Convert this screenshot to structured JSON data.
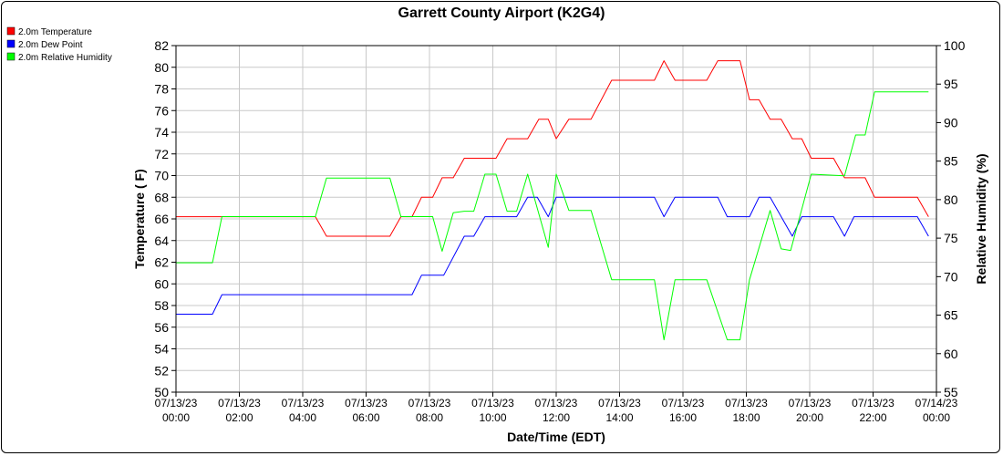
{
  "chart_data": {
    "type": "line",
    "title": "Garrett County Airport (K2G4)",
    "xlabel": "Date/Time (EDT)",
    "ylabel": "Temperature ( F)",
    "y2label": "Relative Humidity (%)",
    "xlim": [
      0,
      24
    ],
    "ylim": [
      50,
      82
    ],
    "y2lim": [
      55,
      100
    ],
    "yticks": [
      50,
      52,
      54,
      56,
      58,
      60,
      62,
      64,
      66,
      68,
      70,
      72,
      74,
      76,
      78,
      80,
      82
    ],
    "y2ticks": [
      55,
      60,
      65,
      70,
      75,
      80,
      85,
      90,
      95,
      100
    ],
    "xticks": [
      {
        "x": 0,
        "date": "07/13/23",
        "time": "00:00"
      },
      {
        "x": 2,
        "date": "07/13/23",
        "time": "02:00"
      },
      {
        "x": 4,
        "date": "07/13/23",
        "time": "04:00"
      },
      {
        "x": 6,
        "date": "07/13/23",
        "time": "06:00"
      },
      {
        "x": 8,
        "date": "07/13/23",
        "time": "08:00"
      },
      {
        "x": 10,
        "date": "07/13/23",
        "time": "10:00"
      },
      {
        "x": 12,
        "date": "07/13/23",
        "time": "12:00"
      },
      {
        "x": 14,
        "date": "07/13/23",
        "time": "14:00"
      },
      {
        "x": 16,
        "date": "07/13/23",
        "time": "16:00"
      },
      {
        "x": 18,
        "date": "07/13/23",
        "time": "18:00"
      },
      {
        "x": 20,
        "date": "07/13/23",
        "time": "20:00"
      },
      {
        "x": 22,
        "date": "07/13/23",
        "time": "22:00"
      },
      {
        "x": 24,
        "date": "07/14/23",
        "time": "00:00"
      }
    ],
    "grid": true,
    "legend_position": "top-left",
    "series": [
      {
        "name": "2.0m Temperature",
        "color": "#ff0000",
        "axis": "left",
        "points": [
          [
            0,
            66.2
          ],
          [
            1.15,
            66.2
          ],
          [
            1.45,
            66.2
          ],
          [
            4.4,
            66.2
          ],
          [
            4.75,
            64.4
          ],
          [
            6.75,
            64.4
          ],
          [
            7.1,
            66.2
          ],
          [
            7.45,
            66.2
          ],
          [
            7.75,
            68.0
          ],
          [
            8.1,
            68.0
          ],
          [
            8.4,
            69.8
          ],
          [
            8.75,
            69.8
          ],
          [
            9.1,
            71.6
          ],
          [
            10.1,
            71.6
          ],
          [
            10.45,
            73.4
          ],
          [
            11.1,
            73.4
          ],
          [
            11.45,
            75.2
          ],
          [
            11.75,
            75.2
          ],
          [
            12.0,
            73.4
          ],
          [
            12.4,
            75.2
          ],
          [
            13.1,
            75.2
          ],
          [
            13.75,
            78.8
          ],
          [
            14.05,
            78.8
          ],
          [
            15.1,
            78.8
          ],
          [
            15.4,
            80.6
          ],
          [
            15.75,
            78.8
          ],
          [
            16.75,
            78.8
          ],
          [
            17.1,
            80.6
          ],
          [
            17.8,
            80.6
          ],
          [
            18.1,
            77.0
          ],
          [
            18.4,
            77.0
          ],
          [
            18.75,
            75.2
          ],
          [
            19.1,
            75.2
          ],
          [
            19.45,
            73.4
          ],
          [
            19.75,
            73.4
          ],
          [
            20.05,
            71.6
          ],
          [
            20.75,
            71.6
          ],
          [
            21.1,
            69.8
          ],
          [
            21.75,
            69.8
          ],
          [
            22.05,
            68.0
          ],
          [
            23.4,
            68.0
          ],
          [
            23.75,
            66.2
          ]
        ]
      },
      {
        "name": "2.0m Dew Point",
        "color": "#0000ff",
        "axis": "left",
        "points": [
          [
            0,
            57.2
          ],
          [
            1.15,
            57.2
          ],
          [
            1.45,
            59.0
          ],
          [
            7.45,
            59.0
          ],
          [
            7.75,
            60.8
          ],
          [
            8.45,
            60.8
          ],
          [
            9.1,
            64.4
          ],
          [
            9.4,
            64.4
          ],
          [
            9.75,
            66.2
          ],
          [
            10.75,
            66.2
          ],
          [
            11.1,
            68.0
          ],
          [
            11.4,
            68.0
          ],
          [
            11.75,
            66.2
          ],
          [
            12.0,
            68.0
          ],
          [
            15.1,
            68.0
          ],
          [
            15.4,
            66.2
          ],
          [
            15.75,
            68.0
          ],
          [
            17.1,
            68.0
          ],
          [
            17.4,
            66.2
          ],
          [
            18.1,
            66.2
          ],
          [
            18.4,
            68.0
          ],
          [
            18.75,
            68.0
          ],
          [
            19.45,
            64.4
          ],
          [
            19.75,
            66.2
          ],
          [
            20.75,
            66.2
          ],
          [
            21.1,
            64.4
          ],
          [
            21.4,
            66.2
          ],
          [
            23.4,
            66.2
          ],
          [
            23.75,
            64.4
          ]
        ]
      },
      {
        "name": "2.0m Relative Humidity",
        "color": "#00ff00",
        "axis": "right",
        "points": [
          [
            0,
            71.8
          ],
          [
            1.15,
            71.8
          ],
          [
            1.45,
            77.8
          ],
          [
            4.4,
            77.8
          ],
          [
            4.75,
            82.8
          ],
          [
            6.75,
            82.8
          ],
          [
            7.1,
            77.8
          ],
          [
            8.1,
            77.8
          ],
          [
            8.4,
            73.3
          ],
          [
            8.75,
            78.3
          ],
          [
            9.1,
            78.5
          ],
          [
            9.4,
            78.5
          ],
          [
            9.75,
            83.3
          ],
          [
            10.1,
            83.3
          ],
          [
            10.45,
            78.5
          ],
          [
            10.75,
            78.5
          ],
          [
            11.1,
            83.3
          ],
          [
            11.75,
            73.8
          ],
          [
            12.0,
            83.3
          ],
          [
            12.4,
            78.6
          ],
          [
            13.1,
            78.6
          ],
          [
            13.75,
            69.6
          ],
          [
            15.1,
            69.6
          ],
          [
            15.4,
            61.8
          ],
          [
            15.75,
            69.6
          ],
          [
            16.75,
            69.6
          ],
          [
            17.4,
            61.8
          ],
          [
            17.8,
            61.8
          ],
          [
            18.1,
            69.6
          ],
          [
            18.75,
            78.6
          ],
          [
            19.1,
            73.6
          ],
          [
            19.4,
            73.4
          ],
          [
            20.05,
            83.3
          ],
          [
            21.1,
            83.1
          ],
          [
            21.45,
            88.4
          ],
          [
            21.75,
            88.4
          ],
          [
            22.05,
            94.0
          ],
          [
            23.75,
            94.0
          ]
        ]
      }
    ]
  }
}
